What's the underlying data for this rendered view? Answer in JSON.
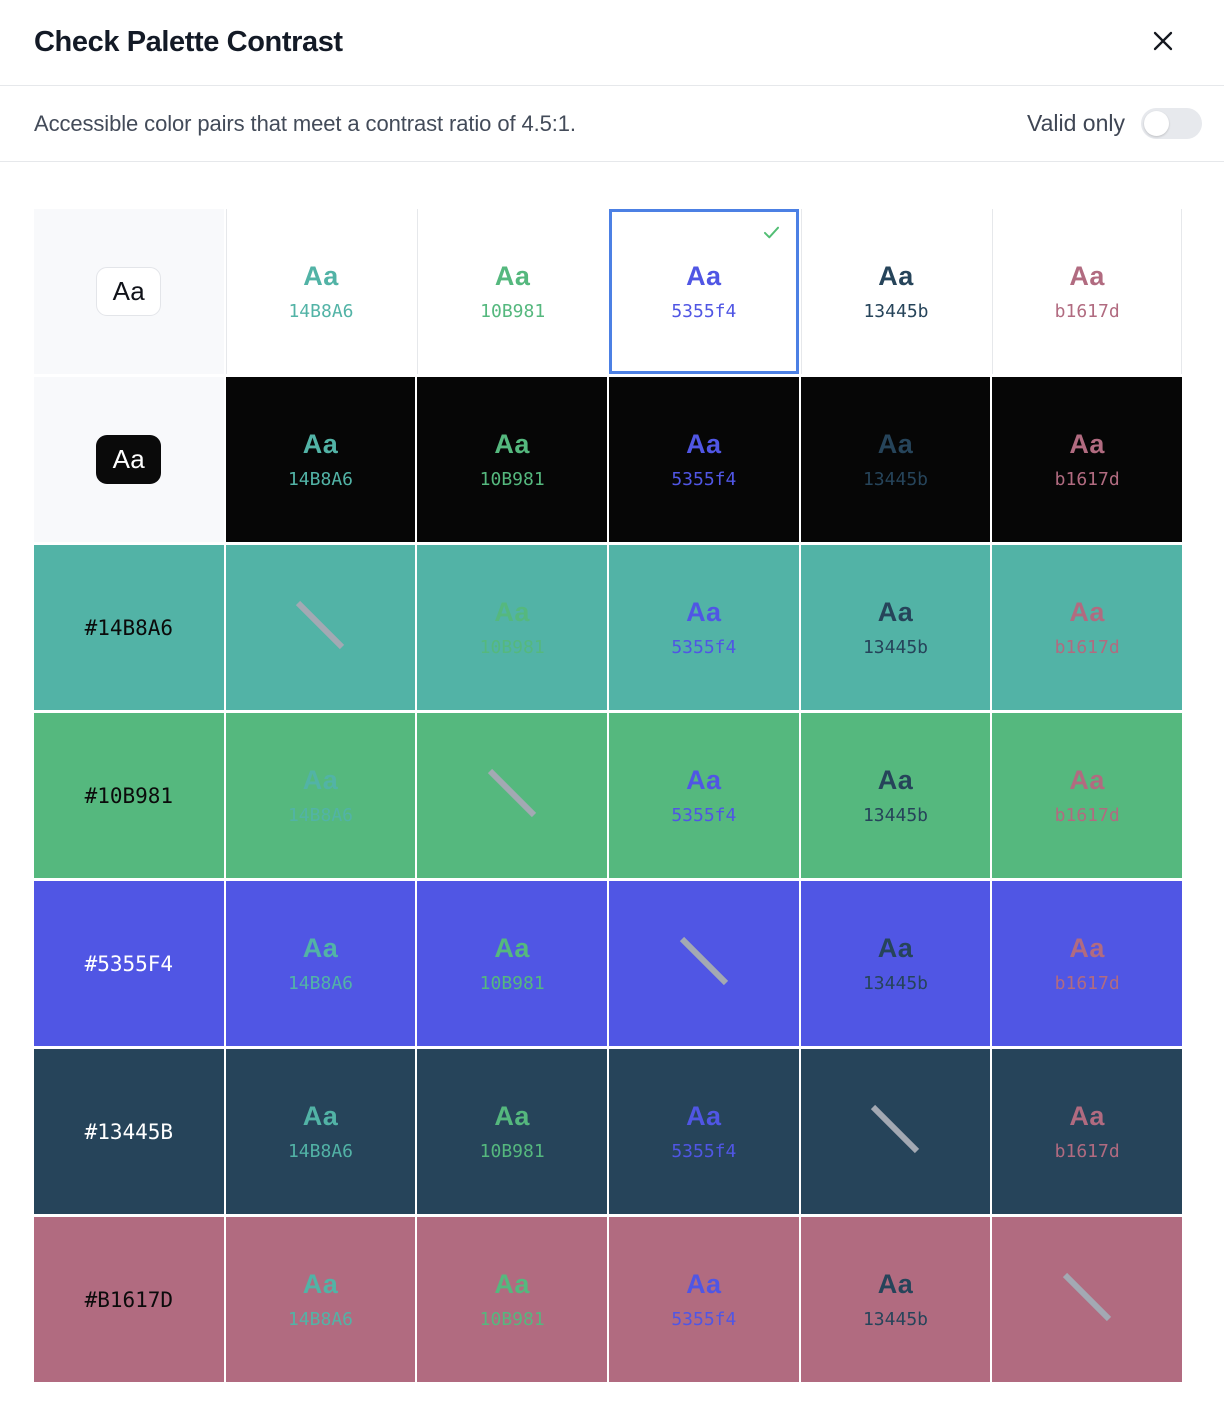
{
  "dialog": {
    "title": "Check Palette Contrast",
    "close_icon": "x"
  },
  "subheader": {
    "description": "Accessible color pairs that meet a contrast ratio of 4.5:1.",
    "toggle": {
      "label": "Valid only",
      "state": "off"
    }
  },
  "grid": {
    "sample_text": "Aa",
    "columns": [
      {
        "hex": "14B8A6",
        "color": "#52B3A6"
      },
      {
        "hex": "10B981",
        "color": "#55B87E"
      },
      {
        "hex": "5355f4",
        "color": "#5056E4"
      },
      {
        "hex": "13445b",
        "color": "#26445A"
      },
      {
        "hex": "b1617d",
        "color": "#B16B80"
      }
    ],
    "rows": [
      {
        "kind": "white",
        "bg": "#FFFFFF",
        "swatch_bg": "#F8F9FB",
        "chip_style": "white"
      },
      {
        "kind": "black",
        "bg": "#060606",
        "swatch_bg": "#F8F9FB",
        "chip_style": "black"
      },
      {
        "kind": "color",
        "label": "#14B8A6",
        "bg": "#52B3A6",
        "label_color": "#0B0B0B",
        "self": 0
      },
      {
        "kind": "color",
        "label": "#10B981",
        "bg": "#55B87E",
        "label_color": "#0B0B0B",
        "self": 1
      },
      {
        "kind": "color",
        "label": "#5355F4",
        "bg": "#5056E4",
        "label_color": "#FFFFFF",
        "self": 2
      },
      {
        "kind": "color",
        "label": "#13445B",
        "bg": "#26445A",
        "label_color": "#FFFFFF",
        "self": 3
      },
      {
        "kind": "color",
        "label": "#B1617D",
        "bg": "#B16B80",
        "label_color": "#0B0B0B",
        "self": 4
      }
    ],
    "selected": {
      "row": 0,
      "col": 2,
      "border_color": "#4C80E4",
      "check_color": "#52BE74"
    },
    "slash_color": "#A3A9B3",
    "divider_color": "#E6E8EB"
  }
}
